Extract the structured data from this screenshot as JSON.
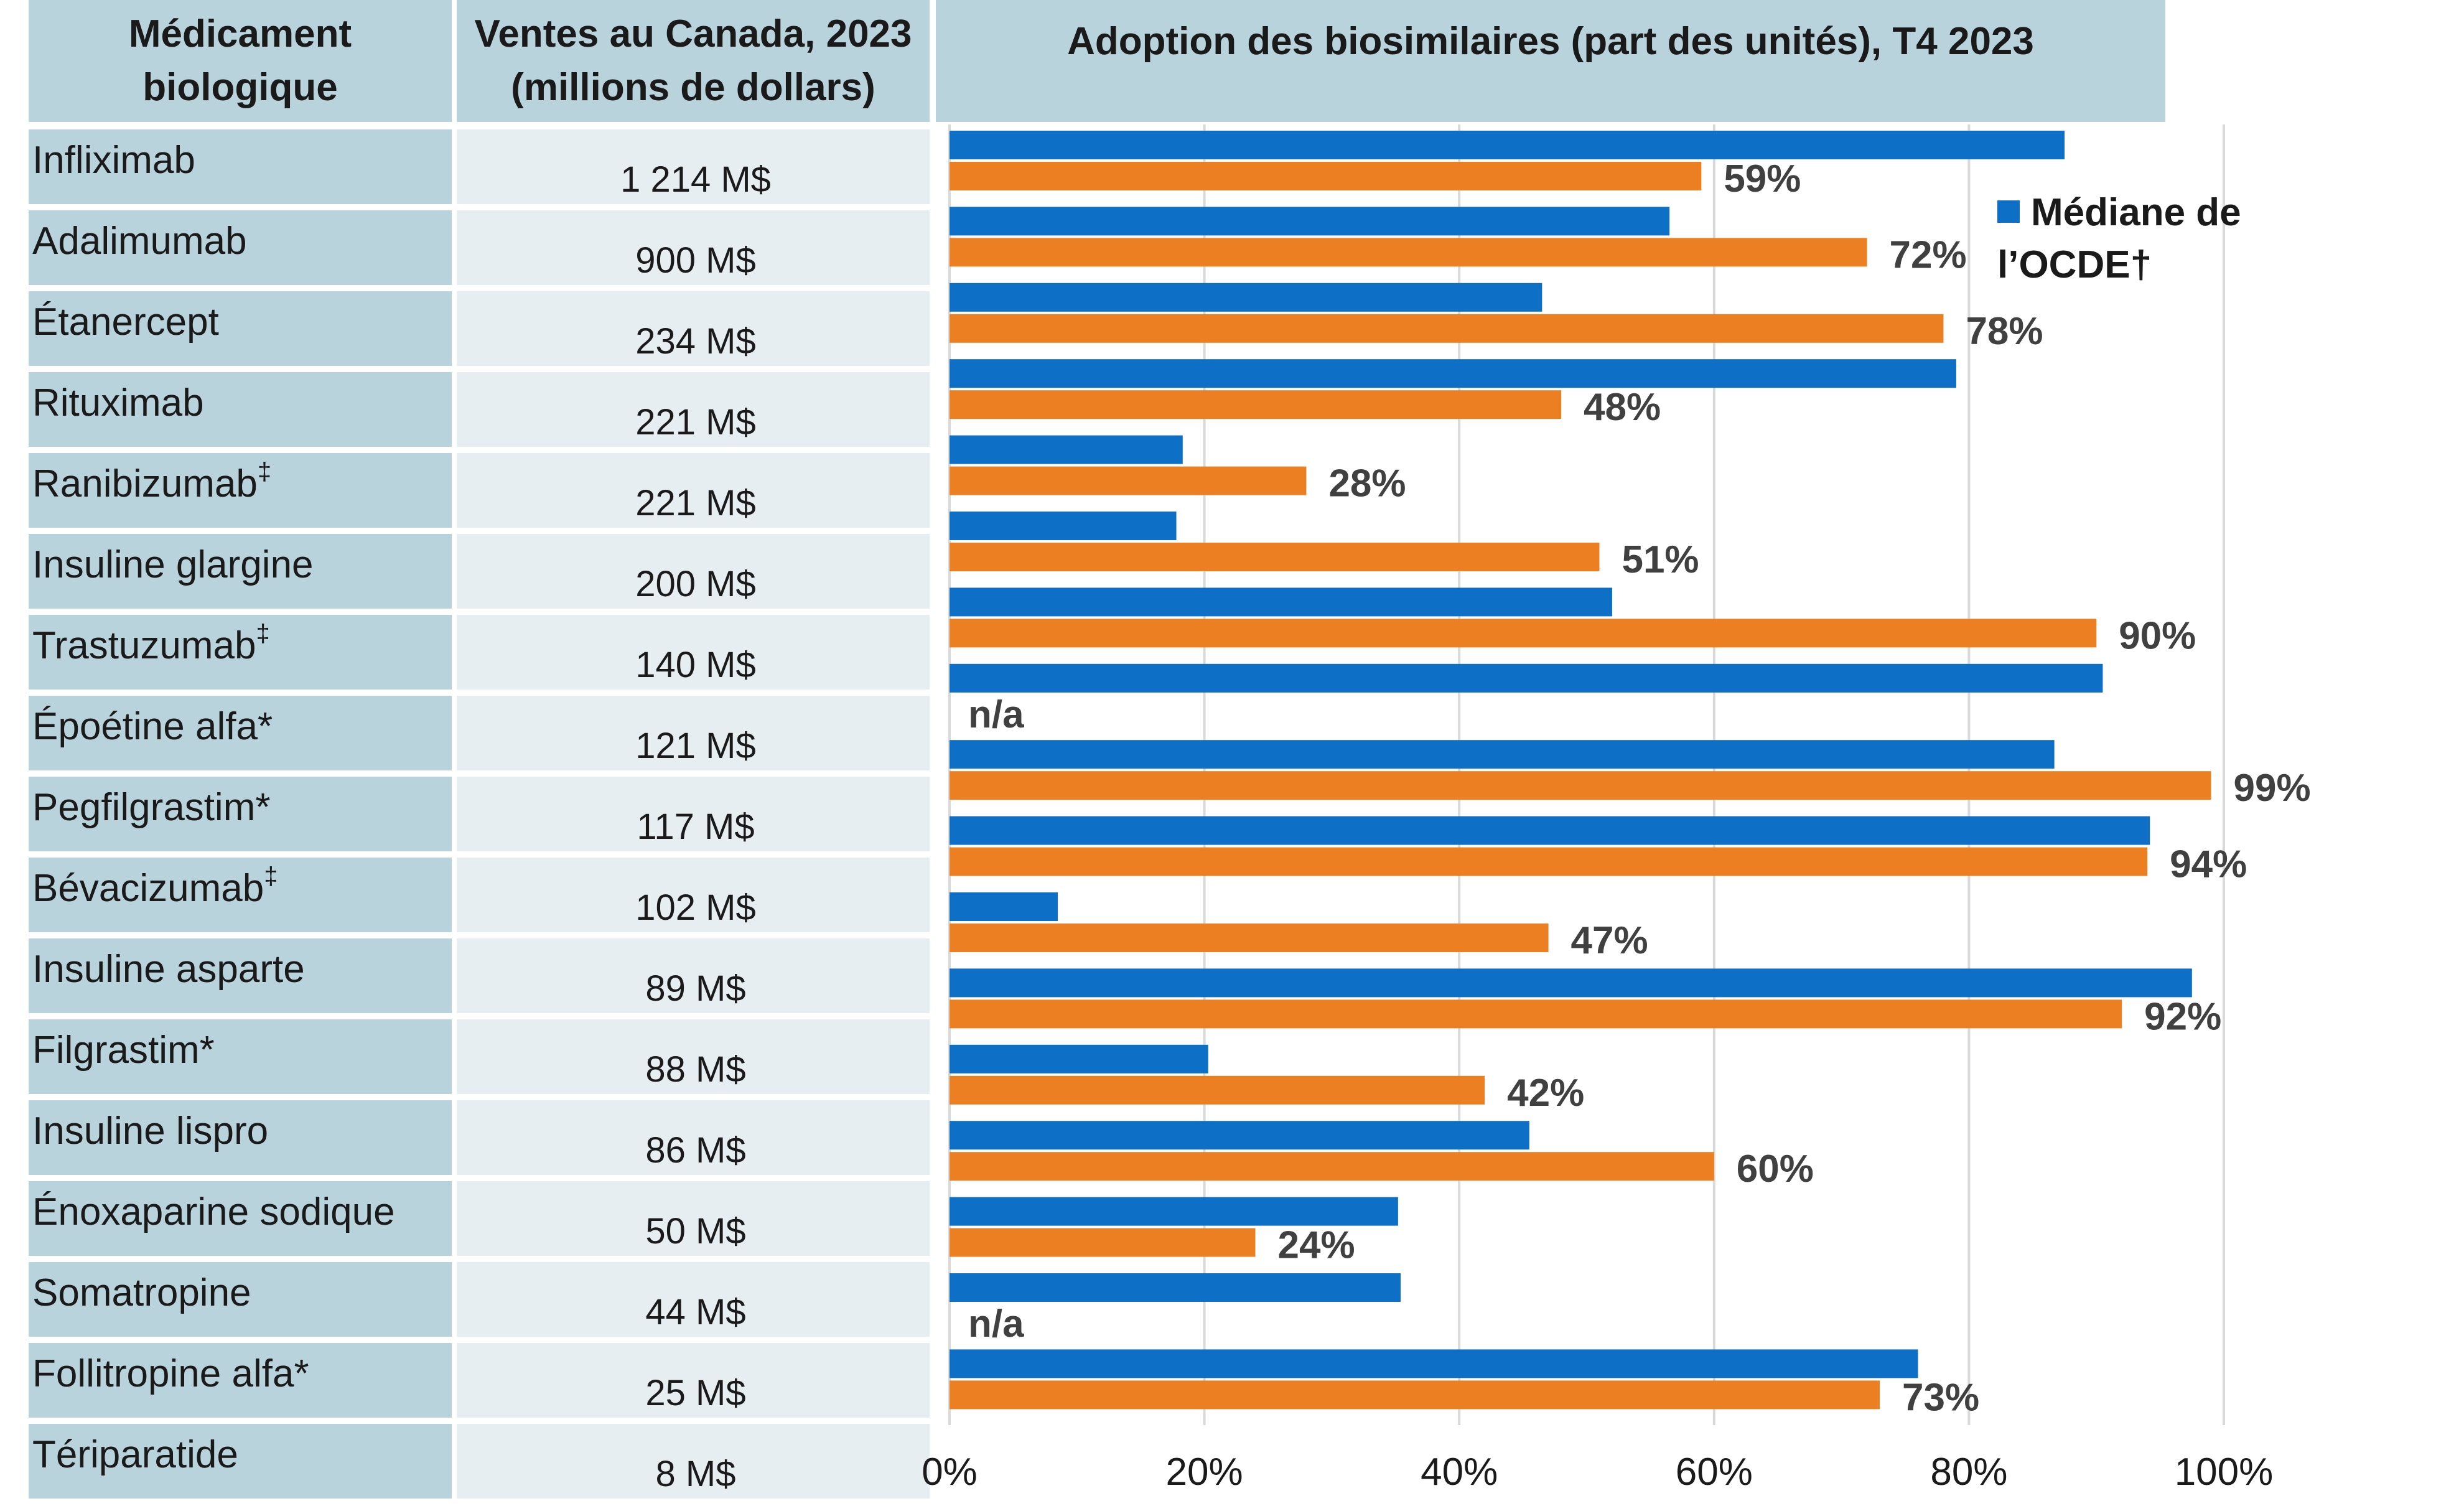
{
  "header": {
    "col1": "Médicament biologique",
    "col2_line1": "Ventes au Canada, 2023",
    "col2_line2": "(millions de dollars)",
    "col3": "Adoption des biosimilaires (part des unités), T4 2023"
  },
  "rows": [
    {
      "name": "Infliximab",
      "mark": "",
      "sales": "1 214 M$"
    },
    {
      "name": "Adalimumab",
      "mark": "",
      "sales": "900 M$"
    },
    {
      "name": "Étanercept",
      "mark": "",
      "sales": "234 M$"
    },
    {
      "name": "Rituximab",
      "mark": "",
      "sales": "221 M$"
    },
    {
      "name": "Ranibizumab",
      "mark": "‡",
      "sales": "221 M$"
    },
    {
      "name": "Insuline glargine",
      "mark": "",
      "sales": "200 M$"
    },
    {
      "name": "Trastuzumab",
      "mark": "‡",
      "sales": "140 M$"
    },
    {
      "name": "Époétine alfa*",
      "mark": "",
      "sales": "121 M$"
    },
    {
      "name": "Pegfilgrastim*",
      "mark": "",
      "sales": "117 M$"
    },
    {
      "name": "Bévacizumab",
      "mark": "‡",
      "sales": "102 M$"
    },
    {
      "name": "Insuline asparte",
      "mark": "",
      "sales": "89 M$"
    },
    {
      "name": "Filgrastim*",
      "mark": "",
      "sales": "88 M$"
    },
    {
      "name": "Insuline lispro",
      "mark": "",
      "sales": "86 M$"
    },
    {
      "name": "Énoxaparine sodique",
      "mark": "",
      "sales": "50 M$"
    },
    {
      "name": "Somatropine",
      "mark": "",
      "sales": "44 M$"
    },
    {
      "name": "Follitropine alfa*",
      "mark": "",
      "sales": "25 M$"
    },
    {
      "name": "Tériparatide",
      "mark": "",
      "sales": "8 M$"
    }
  ],
  "legend": {
    "oecd_line1": "Médiane de",
    "oecd_line2": "l’OCDE†"
  },
  "na_label": "n/a",
  "colors": {
    "oecd": "#0d6fc6",
    "canada": "#ec7f22",
    "header_bg": "#b9d3dd",
    "sales_bg": "#e6eef2",
    "grid": "#d9d9d9"
  },
  "chart_data": {
    "type": "bar",
    "orientation": "horizontal",
    "title": "Adoption des biosimilaires (part des unités), T4 2023",
    "categories": [
      "Infliximab",
      "Adalimumab",
      "Étanercept",
      "Rituximab",
      "Ranibizumab‡",
      "Insuline glargine",
      "Trastuzumab‡",
      "Époétine alfa*",
      "Pegfilgrastim*",
      "Bévacizumab‡",
      "Insuline asparte",
      "Filgrastim*",
      "Insuline lispro",
      "Énoxaparine sodique",
      "Somatropine",
      "Follitropine alfa*",
      "Tériparatide"
    ],
    "series": [
      {
        "name": "Médiane de l’OCDE†",
        "values": [
          87.5,
          56.5,
          46.5,
          79,
          18.3,
          17.8,
          52,
          90.5,
          86.7,
          94.2,
          8.5,
          97.5,
          20.3,
          45.5,
          35.2,
          35.4,
          76
        ]
      },
      {
        "values": [
          59,
          72,
          78,
          48,
          28,
          51,
          90,
          null,
          99,
          94,
          47,
          92,
          42,
          60,
          24,
          null,
          73
        ]
      }
    ],
    "data_labels": [
      "59%",
      "72%",
      "78%",
      "48%",
      "28%",
      "51%",
      "90%",
      "n/a",
      "99%",
      "94%",
      "47%",
      "92%",
      "42%",
      "60%",
      "24%",
      "n/a",
      "73%"
    ],
    "x_ticks": [
      "0%",
      "20%",
      "40%",
      "60%",
      "80%",
      "100%"
    ],
    "xlim": [
      0,
      100
    ],
    "grid": "vertical",
    "legend_position": "top-right"
  }
}
